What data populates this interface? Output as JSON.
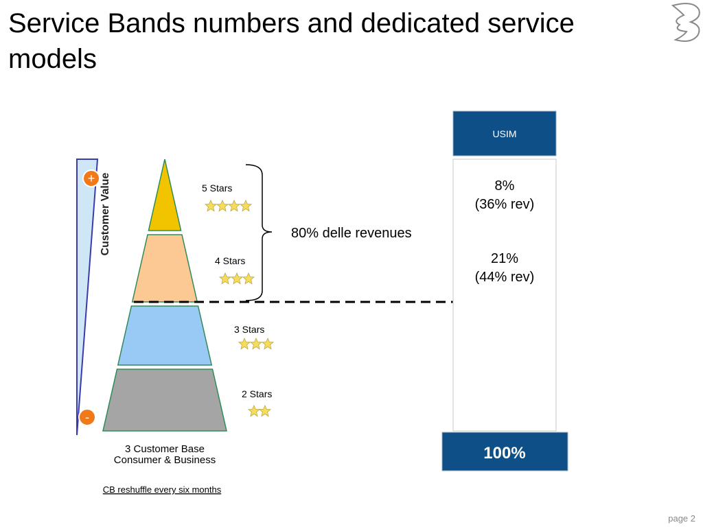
{
  "header": {
    "title": "Service Bands numbers and dedicated service models"
  },
  "axis": {
    "label": "Customer Value",
    "top": "+",
    "bottom": "-"
  },
  "pyramid": {
    "bands": [
      {
        "label": "5 Stars"
      },
      {
        "label": "4 Stars"
      },
      {
        "label": "3 Stars"
      },
      {
        "label": "2 Stars"
      }
    ],
    "base_label": [
      "3 Customer Base",
      "Consumer & Business"
    ],
    "note": "CB reshuffle every six months"
  },
  "brace_label": "80% delle revenues",
  "usim": {
    "header": "USIM",
    "rows": [
      [
        "8%",
        "(36% rev)"
      ],
      [
        "21%",
        "(44% rev)"
      ]
    ],
    "total": "100%"
  },
  "footer": {
    "page": "page 2"
  }
}
